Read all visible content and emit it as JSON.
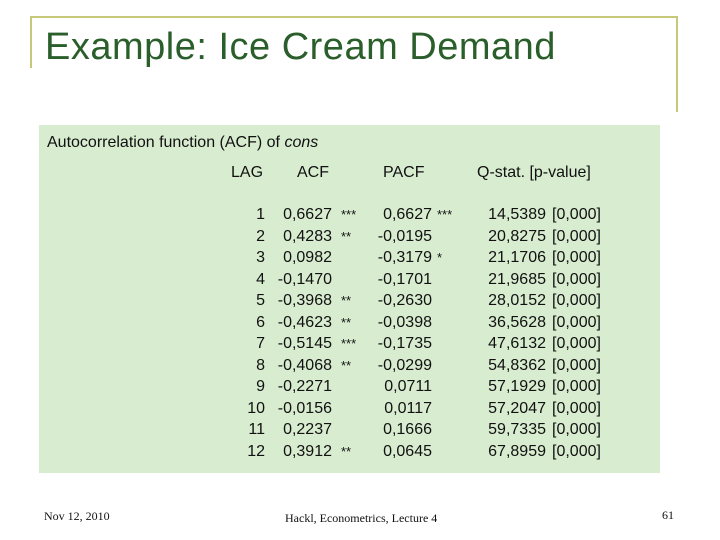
{
  "slide": {
    "title": "Example: Ice Cream Demand",
    "caption_prefix": "Autocorrelation function (ACF) of ",
    "caption_var": "cons"
  },
  "table": {
    "headers": [
      "LAG",
      "ACF",
      "PACF",
      "Q-stat. [p-value]"
    ],
    "rows": [
      {
        "lag": "1",
        "acf": "0,6627",
        "acf_sig": "***",
        "pacf": "0,6627",
        "pacf_sig": "***",
        "q": "14,5389",
        "p": "[0,000]"
      },
      {
        "lag": "2",
        "acf": "0,4283",
        "acf_sig": "**",
        "pacf": "-0,0195",
        "pacf_sig": "",
        "q": "20,8275",
        "p": "[0,000]"
      },
      {
        "lag": "3",
        "acf": "0,0982",
        "acf_sig": "",
        "pacf": "-0,3179",
        "pacf_sig": "*",
        "q": "21,1706",
        "p": "[0,000]"
      },
      {
        "lag": "4",
        "acf": "-0,1470",
        "acf_sig": "",
        "pacf": "-0,1701",
        "pacf_sig": "",
        "q": "21,9685",
        "p": "[0,000]"
      },
      {
        "lag": "5",
        "acf": "-0,3968",
        "acf_sig": "**",
        "pacf": "-0,2630",
        "pacf_sig": "",
        "q": "28,0152",
        "p": "[0,000]"
      },
      {
        "lag": "6",
        "acf": "-0,4623",
        "acf_sig": "**",
        "pacf": "-0,0398",
        "pacf_sig": "",
        "q": "36,5628",
        "p": "[0,000]"
      },
      {
        "lag": "7",
        "acf": "-0,5145",
        "acf_sig": "***",
        "pacf": "-0,1735",
        "pacf_sig": "",
        "q": "47,6132",
        "p": "[0,000]"
      },
      {
        "lag": "8",
        "acf": "-0,4068",
        "acf_sig": "**",
        "pacf": "-0,0299",
        "pacf_sig": "",
        "q": "54,8362",
        "p": "[0,000]"
      },
      {
        "lag": "9",
        "acf": "-0,2271",
        "acf_sig": "",
        "pacf": "0,0711",
        "pacf_sig": "",
        "q": "57,1929",
        "p": "[0,000]"
      },
      {
        "lag": "10",
        "acf": "-0,0156",
        "acf_sig": "",
        "pacf": "0,0117",
        "pacf_sig": "",
        "q": "57,2047",
        "p": "[0,000]"
      },
      {
        "lag": "11",
        "acf": "0,2237",
        "acf_sig": "",
        "pacf": "0,1666",
        "pacf_sig": "",
        "q": "59,7335",
        "p": "[0,000]"
      },
      {
        "lag": "12",
        "acf": "0,3912",
        "acf_sig": "**",
        "pacf": "0,0645",
        "pacf_sig": "",
        "q": "67,8959",
        "p": "[0,000]"
      }
    ]
  },
  "footer": {
    "date": "Nov 12, 2010",
    "center": "Hackl,  Econometrics, Lecture 4",
    "page": "61"
  },
  "colors": {
    "title": "#2a5e2a",
    "frame": "#c8c87a",
    "panel": "#d8ecd0"
  }
}
